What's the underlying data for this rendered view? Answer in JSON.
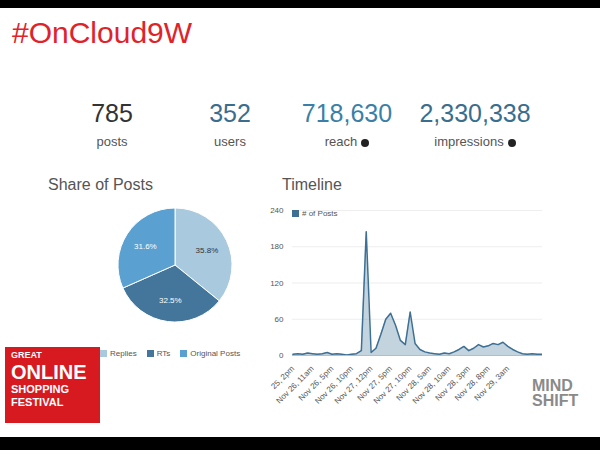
{
  "title": "#OnCloud9W",
  "stats": [
    {
      "value": 785,
      "label": "posts",
      "color": "#333333"
    },
    {
      "value": 352,
      "label": "users",
      "color": "#3b6d8c"
    },
    {
      "value": 718630,
      "label": "reach",
      "color": "#3b7fa8"
    },
    {
      "value": 2330338,
      "label": "impressions",
      "color": "#3b6d8c"
    }
  ],
  "logos": {
    "festival": [
      "GREAT",
      "ONLINE",
      "SHOPPING",
      "FESTIVAL"
    ],
    "brand": [
      "MIND",
      "SHIFT"
    ]
  },
  "chart_data": [
    {
      "type": "pie",
      "title": "Share of Posts",
      "categories": [
        "Replies",
        "RTs",
        "Original Posts"
      ],
      "values": [
        35.8,
        32.5,
        31.6
      ],
      "value_labels": [
        "35.8%",
        "32.5%",
        "31.6%"
      ],
      "colors": [
        "#a9c9df",
        "#43769a",
        "#5aa0d0"
      ],
      "data_labels": true,
      "legend": "bottom"
    },
    {
      "type": "area",
      "title": "Timeline",
      "categories": [
        "25, 2pm",
        null,
        null,
        null,
        "Nov 26, 11am",
        null,
        null,
        null,
        "Nov 26, 5pm",
        null,
        null,
        null,
        "Nov 26, 10pm",
        null,
        null,
        null,
        "Nov 27, 12pm",
        null,
        null,
        null,
        "Nov 27, 5pm",
        null,
        null,
        null,
        "Nov 27, 10pm",
        null,
        null,
        null,
        "Nov 28, 5am",
        null,
        null,
        null,
        "Nov 28, 10am",
        null,
        null,
        null,
        "Nov 28, 3pm",
        null,
        null,
        null,
        "Nov 28, 8pm",
        null,
        null,
        null,
        "Nov 29, 3am",
        null,
        null,
        null,
        null,
        null,
        null,
        null
      ],
      "series": [
        {
          "name": "# of Posts",
          "color": "#3d7094",
          "values": [
            2,
            3,
            2,
            4,
            3,
            2,
            3,
            5,
            2,
            3,
            2,
            1,
            2,
            3,
            8,
            205,
            5,
            12,
            35,
            60,
            70,
            50,
            25,
            18,
            72,
            20,
            10,
            6,
            4,
            3,
            2,
            4,
            3,
            6,
            10,
            15,
            8,
            12,
            18,
            14,
            16,
            20,
            18,
            22,
            15,
            10,
            6,
            3,
            2,
            3,
            2,
            2
          ]
        }
      ],
      "ylim": [
        0,
        240
      ],
      "yticks": [
        0,
        60,
        120,
        180,
        240
      ],
      "grid": true,
      "legend": "top-left"
    }
  ]
}
